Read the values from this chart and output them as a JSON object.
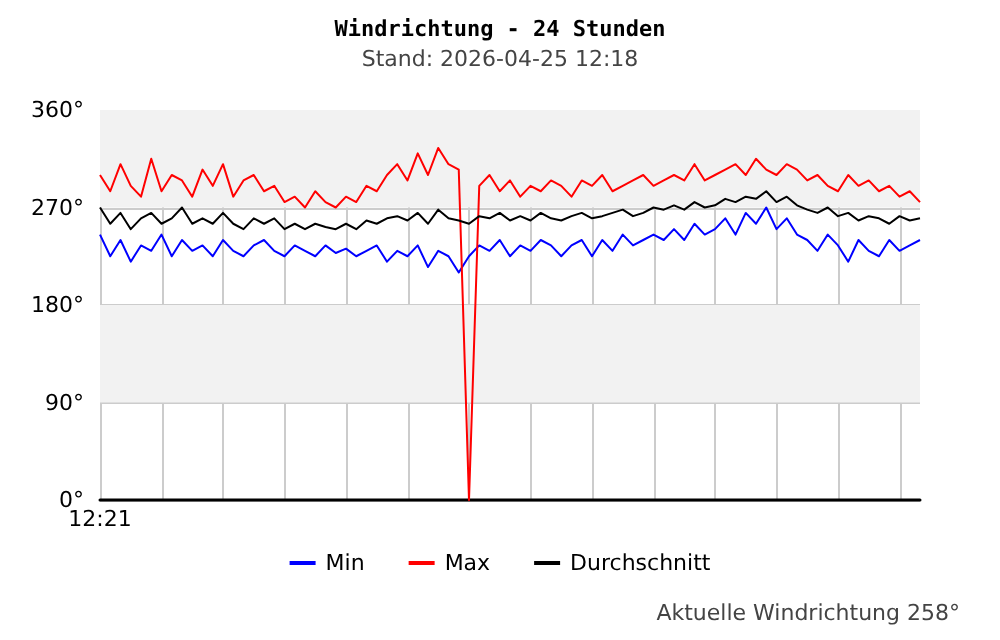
{
  "chart_data": {
    "type": "line",
    "title": "Windrichtung - 24 Stunden",
    "subtitle": "Stand: 2026-04-25 12:18",
    "annotations": [
      "Aktuelle Windrichtung 258°"
    ],
    "categories": [
      "12:21",
      null,
      null,
      null,
      null,
      null,
      null,
      null,
      null,
      null,
      null,
      null,
      null,
      null,
      null,
      null,
      null,
      null,
      null,
      null,
      null,
      null,
      null,
      null,
      null,
      null,
      null,
      null,
      null,
      null,
      null,
      null,
      null,
      null,
      null,
      null,
      null,
      null,
      null,
      null,
      null,
      null,
      null,
      null,
      null,
      null,
      null,
      null,
      null,
      null,
      null,
      null,
      null,
      null,
      null,
      null,
      null,
      null,
      null,
      null,
      null,
      null,
      null,
      null,
      null,
      null,
      null,
      null,
      null,
      null,
      null,
      null,
      null,
      null,
      null,
      null,
      null,
      null,
      null,
      null,
      null
    ],
    "series": [
      {
        "name": "Min",
        "color": "#0000ff",
        "values": [
          245,
          225,
          240,
          220,
          235,
          230,
          245,
          225,
          240,
          230,
          235,
          225,
          240,
          230,
          225,
          235,
          240,
          230,
          225,
          235,
          230,
          225,
          235,
          228,
          232,
          225,
          230,
          235,
          220,
          230,
          225,
          235,
          215,
          230,
          225,
          210,
          225,
          235,
          230,
          240,
          225,
          235,
          230,
          240,
          235,
          225,
          235,
          240,
          225,
          240,
          230,
          245,
          235,
          240,
          245,
          240,
          250,
          240,
          255,
          245,
          250,
          260,
          245,
          265,
          255,
          270,
          250,
          260,
          245,
          240,
          230,
          245,
          235,
          220,
          240,
          230,
          225,
          240,
          230,
          235,
          240
        ]
      },
      {
        "name": "Max",
        "color": "#ff0000",
        "values": [
          300,
          285,
          310,
          290,
          280,
          315,
          285,
          300,
          295,
          280,
          305,
          290,
          310,
          280,
          295,
          300,
          285,
          290,
          275,
          280,
          270,
          285,
          275,
          270,
          280,
          275,
          290,
          285,
          300,
          310,
          295,
          320,
          300,
          325,
          310,
          305,
          0,
          290,
          300,
          285,
          295,
          280,
          290,
          285,
          295,
          290,
          280,
          295,
          290,
          300,
          285,
          290,
          295,
          300,
          290,
          295,
          300,
          295,
          310,
          295,
          300,
          305,
          310,
          300,
          315,
          305,
          300,
          310,
          305,
          295,
          300,
          290,
          285,
          300,
          290,
          295,
          285,
          290,
          280,
          285,
          275
        ]
      },
      {
        "name": "Durchschnitt",
        "color": "#000000",
        "values": [
          270,
          255,
          265,
          250,
          260,
          265,
          255,
          260,
          270,
          255,
          260,
          255,
          265,
          255,
          250,
          260,
          255,
          260,
          250,
          255,
          250,
          255,
          252,
          250,
          255,
          250,
          258,
          255,
          260,
          262,
          258,
          265,
          255,
          268,
          260,
          258,
          255,
          262,
          260,
          265,
          258,
          262,
          258,
          265,
          260,
          258,
          262,
          265,
          260,
          262,
          265,
          268,
          262,
          265,
          270,
          268,
          272,
          268,
          275,
          270,
          272,
          278,
          275,
          280,
          278,
          285,
          275,
          280,
          272,
          268,
          265,
          270,
          262,
          265,
          258,
          262,
          260,
          255,
          262,
          258,
          260
        ]
      }
    ],
    "ylim": [
      0,
      360
    ],
    "yticks": [
      {
        "value": 0,
        "label": "0°"
      },
      {
        "value": 90,
        "label": "90°"
      },
      {
        "value": 180,
        "label": "180°"
      },
      {
        "value": 270,
        "label": "270°"
      },
      {
        "value": 360,
        "label": "360°"
      }
    ],
    "bands": [
      {
        "axis": "y",
        "from": 90,
        "to": 180,
        "color": "#f2f2f2"
      },
      {
        "axis": "y",
        "from": 270,
        "to": 360,
        "color": "#f2f2f2"
      }
    ],
    "grid": true,
    "legend": "bottom",
    "marker": "none",
    "line_style": "solid"
  }
}
